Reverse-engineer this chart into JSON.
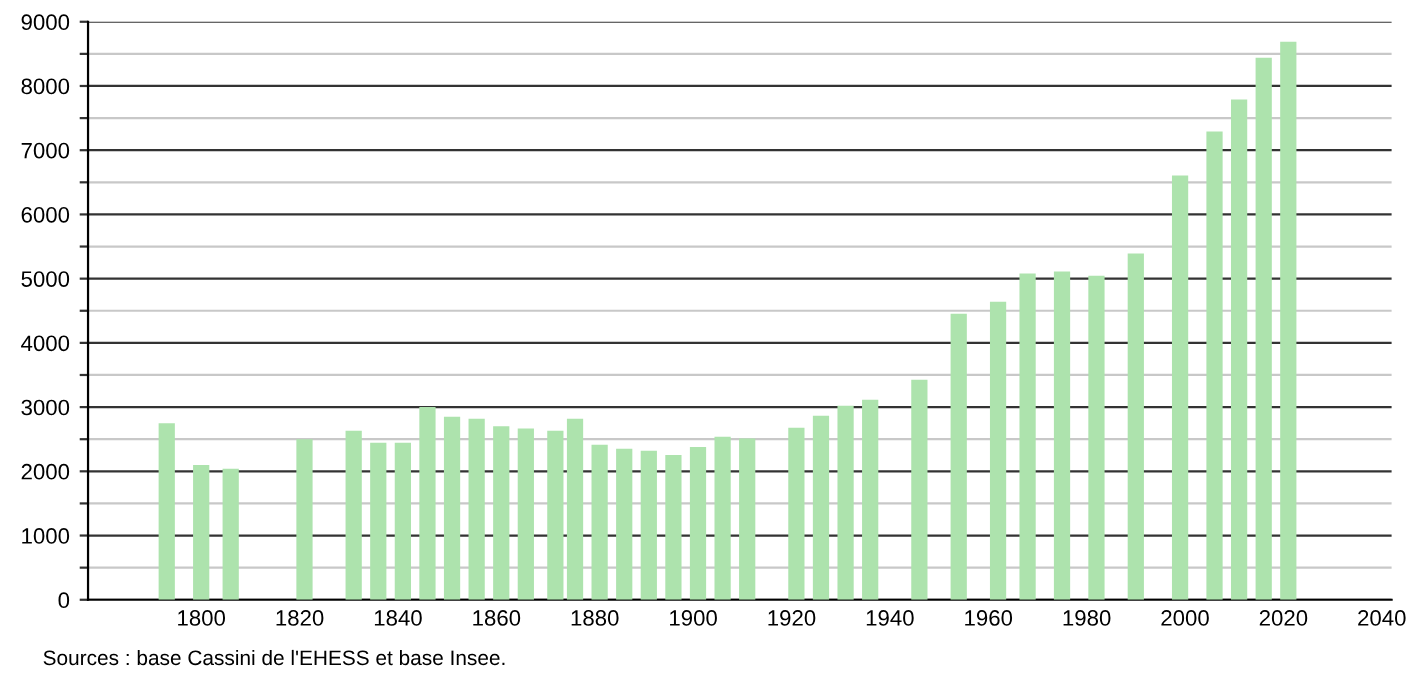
{
  "chart_data": {
    "type": "bar",
    "x": [
      1793,
      1800,
      1806,
      1821,
      1831,
      1836,
      1841,
      1846,
      1851,
      1856,
      1861,
      1866,
      1872,
      1876,
      1881,
      1886,
      1891,
      1896,
      1901,
      1906,
      1911,
      1921,
      1926,
      1931,
      1936,
      1946,
      1954,
      1962,
      1968,
      1975,
      1982,
      1990,
      1999,
      2006,
      2011,
      2016,
      2021
    ],
    "series": [
      {
        "color": "#ade3ad",
        "values": [
          2750,
          2100,
          2040,
          2500,
          2630,
          2445,
          2445,
          3000,
          2850,
          2820,
          2700,
          2665,
          2630,
          2820,
          2415,
          2350,
          2320,
          2255,
          2380,
          2540,
          2510,
          2680,
          2865,
          3020,
          3115,
          3425,
          4455,
          4640,
          5080,
          5110,
          5045,
          5390,
          6605,
          7290,
          7790,
          8440,
          8690
        ]
      }
    ],
    "xlim": [
      1777,
      2042
    ],
    "xticks": [
      1800,
      1820,
      1840,
      1860,
      1880,
      1900,
      1920,
      1940,
      1960,
      1980,
      2000,
      2020,
      2040
    ],
    "ylim": [
      0,
      9000
    ],
    "yticks": [
      0,
      {
        "value": 500,
        "label": null
      },
      1000,
      {
        "value": 1500,
        "label": null
      },
      2000,
      {
        "value": 2500,
        "label": null
      },
      3000,
      {
        "value": 3500,
        "label": null
      },
      4000,
      {
        "value": 4500,
        "label": null
      },
      5000,
      {
        "value": 5500,
        "label": null
      },
      6000,
      {
        "value": 6500,
        "label": null
      },
      7000,
      {
        "value": 7500,
        "label": null
      },
      8000,
      {
        "value": 8500,
        "label": null
      },
      9000
    ],
    "grid": "y",
    "annotations": [
      "Sources : base Cassini de l'EHESS et base Insee."
    ]
  }
}
